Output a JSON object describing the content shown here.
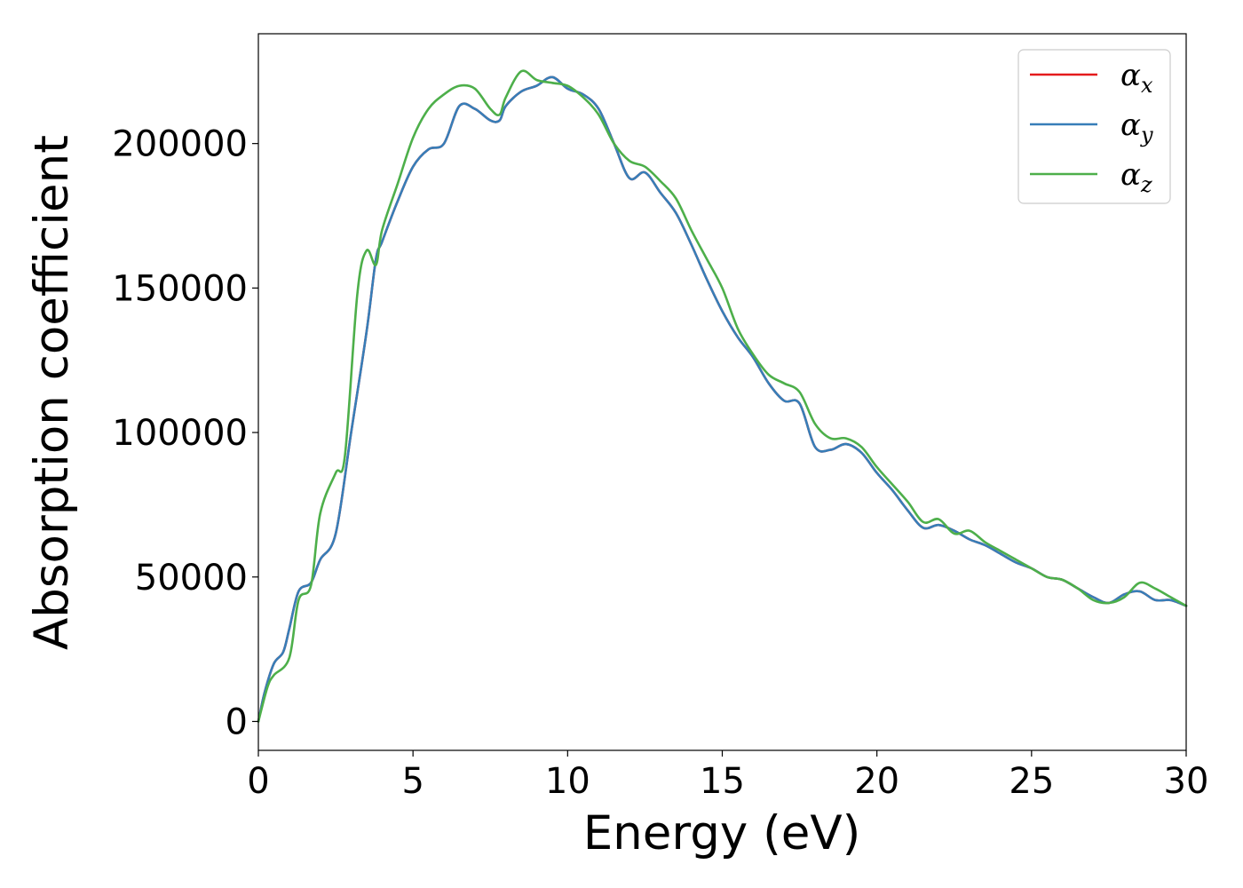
{
  "chart_data": {
    "type": "line",
    "xlabel": "Energy (eV)",
    "ylabel": "Absorption coefficient",
    "xlim": [
      0,
      30
    ],
    "ylim": [
      -10000,
      238000
    ],
    "xticks": [
      0,
      5,
      10,
      15,
      20,
      25,
      30
    ],
    "xtick_labels": [
      "0",
      "5",
      "10",
      "15",
      "20",
      "25",
      "30"
    ],
    "yticks": [
      0,
      50000,
      100000,
      150000,
      200000
    ],
    "ytick_labels": [
      "0",
      "50000",
      "100000",
      "150000",
      "200000"
    ],
    "grid": false,
    "legend_position": "top-right",
    "series": [
      {
        "name": "α",
        "subscript": "x",
        "color": "#e41a1c",
        "x": [
          0,
          0.2,
          0.5,
          0.8,
          1.0,
          1.3,
          1.7,
          2.0,
          2.5,
          3.0,
          3.5,
          3.8,
          4.0,
          4.5,
          5.0,
          5.5,
          6.0,
          6.5,
          7.0,
          7.5,
          7.8,
          8.0,
          8.5,
          9.0,
          9.5,
          10.0,
          10.5,
          11.0,
          11.5,
          12.0,
          12.5,
          13.0,
          13.5,
          14.0,
          14.5,
          15.0,
          15.5,
          16.0,
          16.5,
          17.0,
          17.5,
          18.0,
          18.5,
          19.0,
          19.5,
          20.0,
          20.5,
          21.0,
          21.5,
          22.0,
          22.5,
          23.0,
          23.5,
          24.0,
          24.5,
          25.0,
          25.5,
          26.0,
          26.5,
          27.0,
          27.5,
          28.0,
          28.5,
          29.0,
          29.5,
          30.0
        ],
        "y": [
          0,
          10000,
          20000,
          24000,
          32000,
          45000,
          48000,
          56000,
          65000,
          100000,
          135000,
          160000,
          166000,
          180000,
          192000,
          198000,
          200000,
          213000,
          212000,
          208000,
          208000,
          213000,
          218000,
          220000,
          223000,
          219000,
          217000,
          212000,
          200000,
          188000,
          190000,
          183000,
          176000,
          165000,
          153000,
          142000,
          133000,
          126000,
          117000,
          111000,
          110000,
          95000,
          94000,
          96000,
          93000,
          86000,
          80000,
          73000,
          67000,
          68000,
          66000,
          63000,
          61000,
          58000,
          55000,
          53000,
          50000,
          49000,
          46000,
          43000,
          41000,
          44000,
          45000,
          42000,
          42000,
          40000
        ]
      },
      {
        "name": "α",
        "subscript": "y",
        "color": "#377eb8",
        "x": [
          0,
          0.2,
          0.5,
          0.8,
          1.0,
          1.3,
          1.7,
          2.0,
          2.5,
          3.0,
          3.5,
          3.8,
          4.0,
          4.5,
          5.0,
          5.5,
          6.0,
          6.5,
          7.0,
          7.5,
          7.8,
          8.0,
          8.5,
          9.0,
          9.5,
          10.0,
          10.5,
          11.0,
          11.5,
          12.0,
          12.5,
          13.0,
          13.5,
          14.0,
          14.5,
          15.0,
          15.5,
          16.0,
          16.5,
          17.0,
          17.5,
          18.0,
          18.5,
          19.0,
          19.5,
          20.0,
          20.5,
          21.0,
          21.5,
          22.0,
          22.5,
          23.0,
          23.5,
          24.0,
          24.5,
          25.0,
          25.5,
          26.0,
          26.5,
          27.0,
          27.5,
          28.0,
          28.5,
          29.0,
          29.5,
          30.0
        ],
        "y": [
          0,
          10000,
          20000,
          24000,
          32000,
          45000,
          48000,
          56000,
          65000,
          100000,
          135000,
          160000,
          166000,
          180000,
          192000,
          198000,
          200000,
          213000,
          212000,
          208000,
          208000,
          213000,
          218000,
          220000,
          223000,
          219000,
          217000,
          212000,
          200000,
          188000,
          190000,
          183000,
          176000,
          165000,
          153000,
          142000,
          133000,
          126000,
          117000,
          111000,
          110000,
          95000,
          94000,
          96000,
          93000,
          86000,
          80000,
          73000,
          67000,
          68000,
          66000,
          63000,
          61000,
          58000,
          55000,
          53000,
          50000,
          49000,
          46000,
          43000,
          41000,
          44000,
          45000,
          42000,
          42000,
          40000
        ]
      },
      {
        "name": "α",
        "subscript": "z",
        "color": "#4daf4a",
        "x": [
          0,
          0.3,
          0.5,
          1.0,
          1.3,
          1.7,
          2.0,
          2.5,
          2.8,
          3.2,
          3.5,
          3.8,
          4.0,
          4.5,
          5.0,
          5.5,
          6.0,
          6.5,
          7.0,
          7.5,
          7.8,
          8.0,
          8.5,
          9.0,
          9.5,
          10.0,
          10.5,
          11.0,
          11.5,
          12.0,
          12.5,
          13.0,
          13.5,
          14.0,
          14.5,
          15.0,
          15.5,
          16.0,
          16.5,
          17.0,
          17.5,
          18.0,
          18.5,
          19.0,
          19.5,
          20.0,
          20.5,
          21.0,
          21.5,
          22.0,
          22.5,
          23.0,
          23.5,
          24.0,
          24.5,
          25.0,
          25.5,
          26.0,
          26.5,
          27.0,
          27.5,
          28.0,
          28.5,
          29.0,
          29.5,
          30.0
        ],
        "y": [
          0,
          12000,
          16000,
          22000,
          42000,
          47000,
          72000,
          86000,
          92000,
          148000,
          163000,
          158000,
          170000,
          186000,
          202000,
          212000,
          217000,
          220000,
          219000,
          212000,
          210000,
          216000,
          225000,
          222000,
          221000,
          220000,
          216000,
          210000,
          200000,
          194000,
          192000,
          187000,
          181000,
          170000,
          160000,
          150000,
          136000,
          127000,
          120000,
          117000,
          114000,
          103000,
          98000,
          98000,
          95000,
          88000,
          82000,
          76000,
          69000,
          70000,
          65000,
          66000,
          62000,
          59000,
          56000,
          53000,
          50000,
          49000,
          46000,
          42000,
          41000,
          43000,
          48000,
          46000,
          43000,
          40000
        ]
      }
    ]
  }
}
